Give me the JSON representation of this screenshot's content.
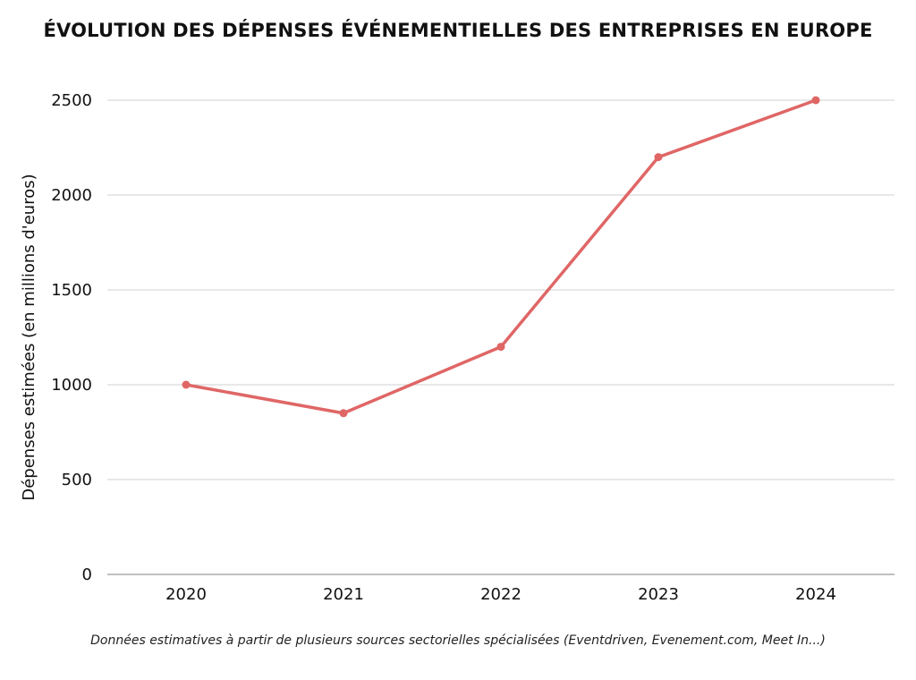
{
  "chart_data": {
    "type": "line",
    "title": "ÉVOLUTION DES DÉPENSES ÉVÉNEMENTIELLES DES ENTREPRISES EN EUROPE",
    "xlabel": "",
    "ylabel": "Dépenses estimées (en millions d'euros)",
    "categories": [
      "2020",
      "2021",
      "2022",
      "2023",
      "2024"
    ],
    "series": [
      {
        "name": "Dépenses estimées",
        "values": [
          1000,
          850,
          1200,
          2200,
          2500
        ],
        "color": "#e06666"
      }
    ],
    "yticks": [
      "0",
      "500",
      "1000",
      "1500",
      "2000",
      "2500"
    ],
    "ylim": [
      0,
      2500
    ],
    "grid": true,
    "legend": "none",
    "note": "Données estimatives à partir de plusieurs sources sectorielles spécialisées (Eventdriven, Evenement.com, Meet In...)"
  }
}
